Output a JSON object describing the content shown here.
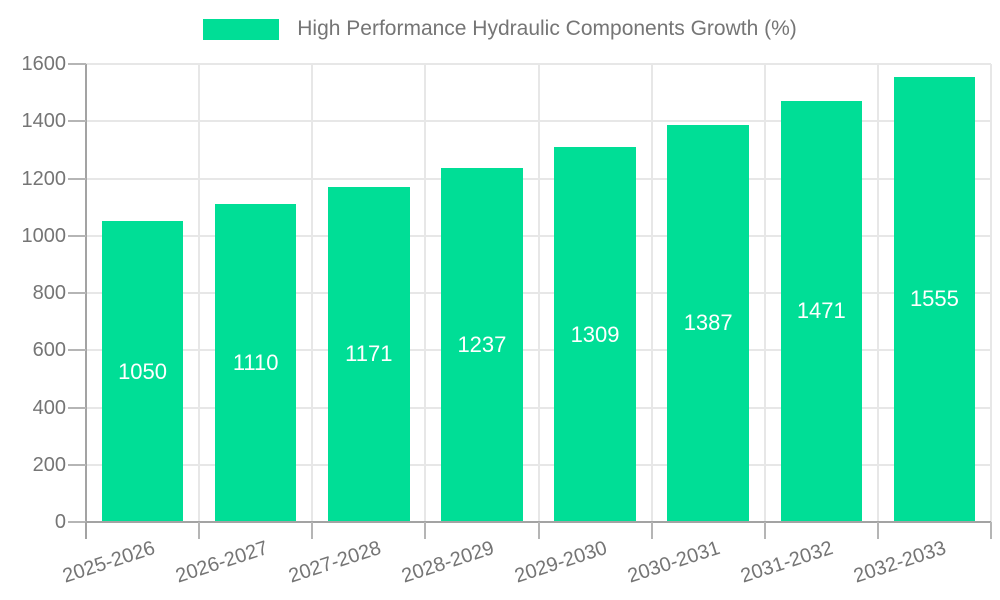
{
  "legend": {
    "label": "High Performance Hydraulic Components Growth (%)"
  },
  "chart_data": {
    "type": "bar",
    "title": "High Performance Hydraulic Components Growth (%)",
    "series_name": "High Performance Hydraulic Components Growth (%)",
    "categories": [
      "2025-2026",
      "2026-2027",
      "2027-2028",
      "2028-2029",
      "2029-2030",
      "2030-2031",
      "2031-2032",
      "2032-2033"
    ],
    "values": [
      1050,
      1110,
      1171,
      1237,
      1309,
      1387,
      1471,
      1555
    ],
    "value_labels": [
      "1050",
      "1110",
      "1171",
      "1237",
      "1309",
      "1387",
      "1471",
      "1555"
    ],
    "y_tick_labels": [
      "0",
      "200",
      "400",
      "600",
      "800",
      "1000",
      "1200",
      "1400",
      "1600"
    ],
    "ylim": [
      0,
      1600
    ],
    "ytick_step": 200,
    "grid": true,
    "legend_position": "top",
    "xlabel": "",
    "ylabel": ""
  },
  "colors": {
    "background": "#ffffff",
    "bar": "#00de96",
    "grid": "#e7e7e7",
    "axis": "#a3a3a3",
    "tick": "#b5b5b5",
    "tick_text": "#757575",
    "value_text": "#ffffff"
  }
}
